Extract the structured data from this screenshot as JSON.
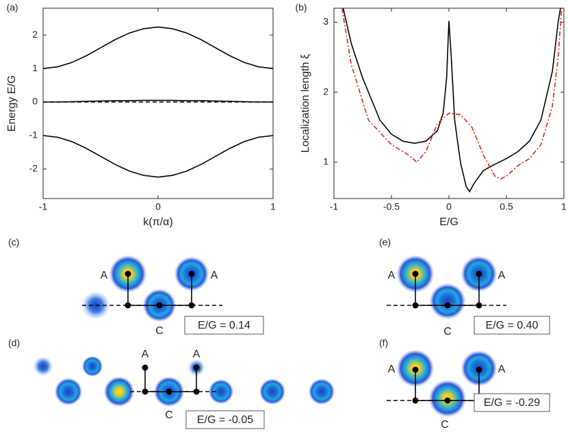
{
  "chart_data": [
    {
      "type": "line",
      "panel": "(a)",
      "xlabel": "k(π/α)",
      "ylabel": "Energy E/G",
      "x": [
        -1,
        -0.875,
        -0.75,
        -0.625,
        -0.5,
        -0.375,
        -0.25,
        -0.125,
        0,
        0.125,
        0.25,
        0.375,
        0.5,
        0.625,
        0.75,
        0.875,
        1
      ],
      "xlim": [
        -1,
        1
      ],
      "xticks": [
        -1,
        0,
        1
      ],
      "ylim": [
        -2.88,
        2.8
      ],
      "yticks": [
        -2,
        -1,
        0,
        1,
        2
      ],
      "series": [
        {
          "color": "#000000",
          "dash": "solid",
          "values": [
            1.0,
            1.05,
            1.18,
            1.38,
            1.62,
            1.86,
            2.06,
            2.19,
            2.24,
            2.19,
            2.06,
            1.86,
            1.62,
            1.38,
            1.18,
            1.05,
            1.0
          ]
        },
        {
          "color": "#000000",
          "dash": "solid",
          "values": [
            0.0,
            0.0,
            0.01,
            0.02,
            0.03,
            0.04,
            0.04,
            0.05,
            0.05,
            0.05,
            0.04,
            0.04,
            0.03,
            0.02,
            0.01,
            0.0,
            0.0
          ]
        },
        {
          "color": "#000000",
          "dash": "dashed",
          "values": [
            0,
            0,
            0,
            0,
            0,
            0,
            0,
            0,
            0,
            0,
            0,
            0,
            0,
            0,
            0,
            0,
            0
          ]
        },
        {
          "color": "#000000",
          "dash": "solid",
          "values": [
            -1.0,
            -1.05,
            -1.18,
            -1.38,
            -1.62,
            -1.86,
            -2.06,
            -2.19,
            -2.24,
            -2.19,
            -2.06,
            -1.86,
            -1.62,
            -1.38,
            -1.18,
            -1.05,
            -1.0
          ]
        }
      ]
    },
    {
      "type": "line",
      "panel": "(b)",
      "xlabel": "E/G",
      "ylabel": "Localization length ξ",
      "xlim": [
        -1,
        1
      ],
      "xticks": [
        -1,
        -0.5,
        0,
        0.5,
        1
      ],
      "ylim": [
        0.48,
        3.2
      ],
      "yticks": [
        1,
        2,
        3
      ],
      "series": [
        {
          "color": "#000000",
          "dash": "solid",
          "x": [
            -0.92,
            -0.85,
            -0.75,
            -0.6,
            -0.5,
            -0.4,
            -0.3,
            -0.2,
            -0.1,
            -0.05,
            -0.02,
            0,
            0.02,
            0.05,
            0.1,
            0.15,
            0.18,
            0.22,
            0.3,
            0.4,
            0.5,
            0.6,
            0.7,
            0.8,
            0.9,
            0.95,
            0.97
          ],
          "values": [
            3.2,
            2.7,
            2.2,
            1.6,
            1.4,
            1.3,
            1.27,
            1.3,
            1.45,
            1.7,
            2.2,
            3.02,
            2.5,
            1.6,
            1.0,
            0.65,
            0.58,
            0.7,
            0.88,
            0.97,
            1.05,
            1.15,
            1.3,
            1.6,
            2.3,
            3.0,
            3.2
          ]
        },
        {
          "color": "#e0201b",
          "dash": "dashdot",
          "x": [
            -0.93,
            -0.85,
            -0.7,
            -0.5,
            -0.35,
            -0.28,
            -0.2,
            -0.1,
            0,
            0.1,
            0.2,
            0.3,
            0.4,
            0.45,
            0.5,
            0.6,
            0.7,
            0.8,
            0.9,
            0.95,
            0.98
          ],
          "values": [
            3.2,
            2.4,
            1.6,
            1.25,
            1.1,
            1.0,
            1.15,
            1.55,
            1.7,
            1.68,
            1.5,
            1.1,
            0.8,
            0.76,
            0.8,
            0.95,
            1.05,
            1.25,
            1.8,
            2.5,
            3.2
          ]
        }
      ]
    }
  ],
  "diagrams": [
    {
      "label": "(c)",
      "sites": [
        "A",
        "A",
        "C"
      ],
      "energy": "E/G = 0.14"
    },
    {
      "label": "(d)",
      "sites": [
        "A",
        "A",
        "C"
      ],
      "energy": "E/G = -0.05"
    },
    {
      "label": "(e)",
      "sites": [
        "A",
        "A",
        "C"
      ],
      "energy": "E/G = 0.40"
    },
    {
      "label": "(f)",
      "sites": [
        "A",
        "A",
        "C"
      ],
      "energy": "E/G = -0.29"
    }
  ]
}
